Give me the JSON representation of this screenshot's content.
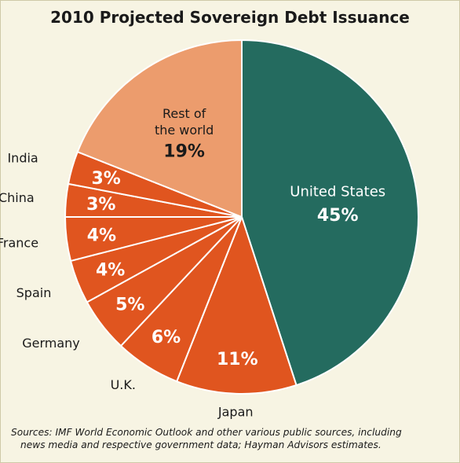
{
  "chart_data": {
    "type": "pie",
    "title": "2010 Projected Sovereign Debt Issuance",
    "slices": [
      {
        "label": "United States",
        "value": 45,
        "value_label": "45%",
        "color": "#246b5f"
      },
      {
        "label": "Japan",
        "value": 11,
        "value_label": "11%",
        "color": "#e0551f"
      },
      {
        "label": "U.K.",
        "value": 6,
        "value_label": "6%",
        "color": "#e0551f"
      },
      {
        "label": "Germany",
        "value": 5,
        "value_label": "5%",
        "color": "#e0551f"
      },
      {
        "label": "Spain",
        "value": 4,
        "value_label": "4%",
        "color": "#e0551f"
      },
      {
        "label": "France",
        "value": 4,
        "value_label": "4%",
        "color": "#e0551f"
      },
      {
        "label": "China",
        "value": 3,
        "value_label": "3%",
        "color": "#e0551f"
      },
      {
        "label": "India",
        "value": 3,
        "value_label": "3%",
        "color": "#e0551f"
      },
      {
        "label": "Rest of the world",
        "label_lines": [
          "Rest of",
          "the world"
        ],
        "value": 19,
        "value_label": "19%",
        "color": "#ec9c6d"
      }
    ]
  },
  "sources": {
    "line1": "Sources:  IMF World Economic Outlook and other various public sources, including",
    "line2": "news media and respective government data; Hayman Advisors estimates."
  }
}
